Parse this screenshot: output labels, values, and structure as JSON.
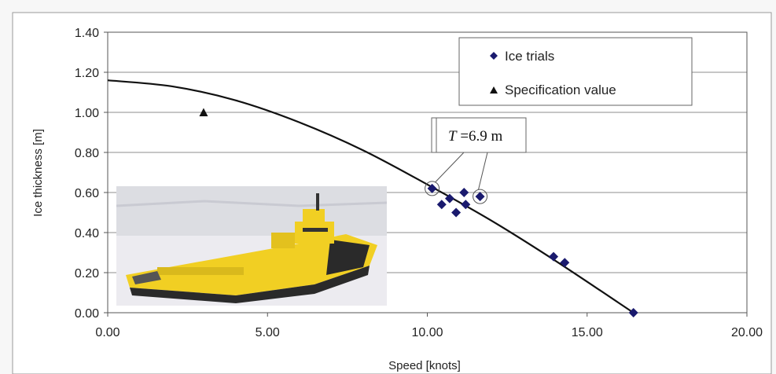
{
  "chart_data": {
    "type": "scatter",
    "xlabel": "Speed [knots]",
    "ylabel": "Ice thickness [m]",
    "xlim": [
      0,
      20
    ],
    "ylim": [
      0,
      1.4
    ],
    "xticks": [
      "0.00",
      "5.00",
      "10.00",
      "15.00",
      "20.00"
    ],
    "yticks": [
      "0.00",
      "0.20",
      "0.40",
      "0.60",
      "0.80",
      "1.00",
      "1.20",
      "1.40"
    ],
    "grid": "horizontal",
    "legend_position": "top-right",
    "series": [
      {
        "name": "Ice trials",
        "marker": "diamond",
        "color": "#1a1a6e",
        "points": [
          {
            "x": 10.15,
            "y": 0.62
          },
          {
            "x": 10.45,
            "y": 0.54
          },
          {
            "x": 10.7,
            "y": 0.57
          },
          {
            "x": 10.9,
            "y": 0.5
          },
          {
            "x": 11.15,
            "y": 0.6
          },
          {
            "x": 11.2,
            "y": 0.54
          },
          {
            "x": 11.65,
            "y": 0.58
          },
          {
            "x": 13.95,
            "y": 0.28
          },
          {
            "x": 14.3,
            "y": 0.25
          },
          {
            "x": 16.45,
            "y": 0.0
          }
        ]
      },
      {
        "name": "Specification value",
        "marker": "triangle",
        "color": "#111111",
        "points": [
          {
            "x": 3.0,
            "y": 1.0
          }
        ]
      }
    ],
    "fit_curve": {
      "color": "#111111",
      "points": [
        {
          "x": 0,
          "y": 1.16
        },
        {
          "x": 2,
          "y": 1.13
        },
        {
          "x": 4,
          "y": 1.06
        },
        {
          "x": 6,
          "y": 0.95
        },
        {
          "x": 8,
          "y": 0.81
        },
        {
          "x": 10,
          "y": 0.64
        },
        {
          "x": 12,
          "y": 0.46
        },
        {
          "x": 14,
          "y": 0.26
        },
        {
          "x": 16.45,
          "y": 0.0
        }
      ]
    },
    "annotation": {
      "text_italic": "T",
      "text_rest": " =6.9 m",
      "highlighted_points": [
        {
          "x": 10.15,
          "y": 0.62
        },
        {
          "x": 11.65,
          "y": 0.58
        }
      ]
    },
    "inset_photo": {
      "subject": "yellow icebreaker ship",
      "colors": {
        "sky": "#dcdde2",
        "ice": "#ecebf0",
        "hull_yellow": "#f1cf23",
        "hull_dark": "#2a2a2a"
      }
    }
  }
}
